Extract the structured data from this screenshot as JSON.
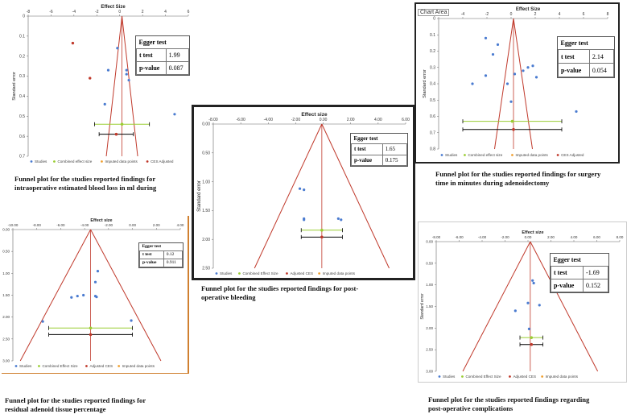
{
  "plot_labels": {
    "x_label": "Effect Size",
    "x_label_lower": "Effect size",
    "y_label": "Standard error"
  },
  "colors": {
    "funnel": "#c0392b",
    "study": "#4a7bd0",
    "combined": "#9acd32",
    "adjusted": "#c0392b",
    "imputed": "#f0a030",
    "ci": "#000000"
  },
  "chart_area_tag": "Chart Area",
  "legend": {
    "studies": "Studies",
    "combined_effect_size": "Combined effect size",
    "combined_effect_size_cap": "Combined Effect Size",
    "imputed_data_points": "Imputed data points",
    "ces_adjusted": "CES Adjusted",
    "adjusted_ces": "Adjusted CES"
  },
  "egger_labels": {
    "title": "Egger test",
    "t": "t test",
    "p": "p-value"
  },
  "captions": {
    "p1": [
      "Funnel plot for the studies reported findings for",
      "intraoperative estimated blood loss  in ml during"
    ],
    "p2": [
      "Funnel plot for the studies reported findings for surgery",
      "time in minutes during adenoidectomy"
    ],
    "p3": [
      "Funnel plot for the studies reported findings for post-",
      "operative bleeding"
    ],
    "p4": [
      "Funnel plot for the studies reported findings for",
      "residual adenoid tissue percentage"
    ],
    "p5": [
      "Funnel plot for the studies reported findings regarding",
      "post-operative complications"
    ]
  },
  "chart_data": [
    {
      "id": "p1",
      "type": "scatter",
      "xlabel": "Effect Size",
      "ylabel": "Standard error",
      "xlim": [
        -8,
        6
      ],
      "ylim": [
        0,
        0.7
      ],
      "x_axis": "top",
      "y_inverted": true,
      "xticks": [
        "-8",
        "-6",
        "-4",
        "-2",
        "0",
        "2",
        "4",
        "6"
      ],
      "yticks": [
        "0",
        "0.1",
        "0.2",
        "0.3",
        "0.4",
        "0.5",
        "0.6",
        "0.7"
      ],
      "legend": [
        "Studies",
        "Combined effect size",
        "Imputed data points",
        "CES Adjusted"
      ],
      "funnel_center": 0.2,
      "studies": [
        [
          -0.2,
          0.16
        ],
        [
          0.6,
          0.27
        ],
        [
          0.6,
          0.29
        ],
        [
          0.8,
          0.32
        ],
        [
          -1,
          0.27
        ],
        [
          -1.3,
          0.44
        ],
        [
          4.8,
          0.49
        ]
      ],
      "imputed": [
        [
          -4.1,
          0.135
        ],
        [
          -2.6,
          0.31
        ]
      ],
      "combined": {
        "x": 0.2,
        "se": 0.54,
        "ci": [
          -2.2,
          2.6
        ]
      },
      "adjusted": {
        "x": -0.3,
        "se": 0.59,
        "ci": [
          -1.8,
          1.2
        ]
      },
      "egger": {
        "t": "1.99",
        "p": "0.087"
      }
    },
    {
      "id": "p2",
      "type": "scatter",
      "xlabel": "Effect Size",
      "ylabel": "Standard error",
      "xlim": [
        -6,
        8
      ],
      "ylim": [
        0,
        0.8
      ],
      "x_axis": "top",
      "y_inverted": true,
      "xticks": [
        "-6",
        "-4",
        "-2",
        "0",
        "2",
        "4",
        "6",
        "8"
      ],
      "yticks": [
        "0",
        "0.1",
        "0.2",
        "0.3",
        "0.4",
        "0.5",
        "0.6",
        "0.7",
        "0.8"
      ],
      "legend": [
        "Studies",
        "Combined effect size",
        "Imputed data points",
        "CES Adjusted"
      ],
      "funnel_center": 0.2,
      "studies": [
        [
          -2.1,
          0.12
        ],
        [
          -1.1,
          0.16
        ],
        [
          -1.5,
          0.22
        ],
        [
          -2.1,
          0.35
        ],
        [
          1.4,
          0.3
        ],
        [
          1.8,
          0.29
        ],
        [
          2.1,
          0.36
        ],
        [
          1,
          0.32
        ],
        [
          -0.3,
          0.4
        ],
        [
          0.3,
          0.34
        ],
        [
          -3.2,
          0.4
        ],
        [
          0,
          0.51
        ],
        [
          5.4,
          0.57
        ]
      ],
      "imputed": [],
      "combined": {
        "x": 0.1,
        "se": 0.63,
        "ci": [
          -4,
          4.2
        ]
      },
      "adjusted": {
        "x": 0.2,
        "se": 0.68,
        "ci": [
          -4,
          4.2
        ]
      },
      "egger": {
        "t": "2.14",
        "p": "0.054"
      }
    },
    {
      "id": "p3",
      "type": "scatter",
      "xlabel": "Effect size",
      "ylabel": "Standard error",
      "xlim": [
        -8,
        6
      ],
      "ylim": [
        0,
        2.5
      ],
      "x_axis": "top",
      "y_inverted": true,
      "xticks": [
        "-8.00",
        "-6.00",
        "-4.00",
        "-2.00",
        "0.00",
        "2.00",
        "4.00",
        "6.00"
      ],
      "yticks": [
        "0.00",
        "0.50",
        "1.00",
        "1.50",
        "2.00",
        "2.50"
      ],
      "legend": [
        "Studies",
        "Combined Effect Size",
        "Adjusted CES",
        "Imputed data points"
      ],
      "funnel_center": -0.1,
      "studies": [
        [
          -1.7,
          1.12
        ],
        [
          -1.4,
          1.14
        ],
        [
          -1.4,
          1.64
        ],
        [
          -1.4,
          1.66
        ],
        [
          1.1,
          1.64
        ],
        [
          1.3,
          1.66
        ]
      ],
      "imputed": [],
      "combined": {
        "x": -0.1,
        "se": 1.84,
        "ci": [
          -1.6,
          1.4
        ]
      },
      "adjusted": {
        "x": -0.1,
        "se": 1.96,
        "ci": [
          -1.6,
          1.4
        ]
      },
      "egger": {
        "t": "1.65",
        "p": "0.175"
      }
    },
    {
      "id": "p4",
      "type": "scatter",
      "xlabel": "Effect size",
      "ylabel": "Standard error",
      "xlim": [
        -10,
        4
      ],
      "ylim": [
        0,
        3
      ],
      "x_axis": "top",
      "y_inverted": true,
      "xticks": [
        "-10.00",
        "-8.00",
        "-6.00",
        "-4.00",
        "-2.00",
        "0.00",
        "2.00",
        "4.00"
      ],
      "yticks": [
        "0.00",
        "0.50",
        "1.00",
        "1.50",
        "2.00",
        "2.50",
        "3.00"
      ],
      "legend": [
        "Studies",
        "Combined Effect Size",
        "Adjusted CES",
        "Imputed data points"
      ],
      "funnel_center": -3.5,
      "studies": [
        [
          -2.9,
          0.95
        ],
        [
          -3.1,
          1.2
        ],
        [
          -4.1,
          1.5
        ],
        [
          -4.6,
          1.52
        ],
        [
          -5.1,
          1.55
        ],
        [
          -3.1,
          1.52
        ],
        [
          -3,
          1.54
        ],
        [
          -7.5,
          2.1
        ],
        [
          -0.1,
          2.08
        ]
      ],
      "imputed": [],
      "combined": {
        "x": -3.5,
        "se": 2.25,
        "ci": [
          -7,
          0
        ]
      },
      "adjusted": {
        "x": -3.5,
        "se": 2.4,
        "ci": [
          -7,
          0
        ]
      },
      "egger": {
        "t": "0.12",
        "p": "0.911"
      }
    },
    {
      "id": "p5",
      "type": "scatter",
      "xlabel": "Effect size",
      "ylabel": "Standard error",
      "xlim": [
        -8,
        8
      ],
      "ylim": [
        0,
        3
      ],
      "x_axis": "top",
      "y_inverted": true,
      "xticks": [
        "-8.00",
        "-6.00",
        "-4.00",
        "-2.00",
        "0.00",
        "2.00",
        "4.00",
        "6.00",
        "8.00"
      ],
      "yticks": [
        "0.00",
        "0.50",
        "1.00",
        "1.50",
        "2.00",
        "2.50",
        "3.00"
      ],
      "legend": [
        "Studies",
        "Combined Effect Size",
        "Adjusted CES",
        "Imputed data points"
      ],
      "funnel_center": 0.2,
      "studies": [
        [
          0.4,
          0.9
        ],
        [
          0.5,
          0.96
        ],
        [
          0,
          1.42
        ],
        [
          1,
          1.47
        ],
        [
          -1.1,
          1.6
        ],
        [
          0.1,
          2.02
        ]
      ],
      "imputed": [],
      "combined": {
        "x": 0.3,
        "se": 2.22,
        "ci": [
          -0.7,
          1.3
        ]
      },
      "adjusted": {
        "x": 0.3,
        "se": 2.38,
        "ci": [
          -0.7,
          1.3
        ]
      },
      "egger": {
        "t": "-1.69",
        "p": "0.152"
      }
    }
  ]
}
